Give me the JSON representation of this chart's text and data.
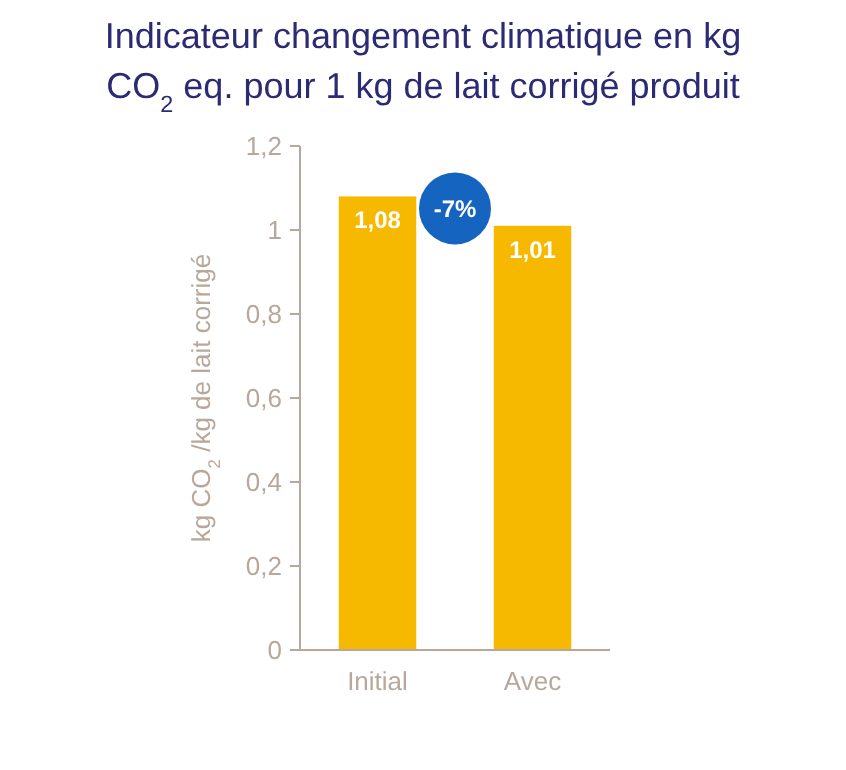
{
  "chart_data": {
    "type": "bar",
    "title": "Indicateur changement climatique en kg CO$_{2}$ eq. pour 1 kg de lait corrigé produit",
    "ylabel": "kg CO$_{2}$/kg de lait corrigé",
    "categories": [
      "Initial",
      "Avec"
    ],
    "values": [
      1.08,
      1.01
    ],
    "value_labels": [
      "1,08",
      "1,01"
    ],
    "color": "#f6b900",
    "ylim": [
      0,
      1.2
    ],
    "yticks": [
      {
        "value": 0,
        "label": "0"
      },
      {
        "value": 0.2,
        "label": "0,2"
      },
      {
        "value": 0.4,
        "label": "0,4"
      },
      {
        "value": 0.6,
        "label": "0,6"
      },
      {
        "value": 0.8,
        "label": "0,8"
      },
      {
        "value": 1,
        "label": "1"
      },
      {
        "value": 1.2,
        "label": "1,2"
      }
    ],
    "annotations": [
      "-7%"
    ],
    "grid": false
  }
}
